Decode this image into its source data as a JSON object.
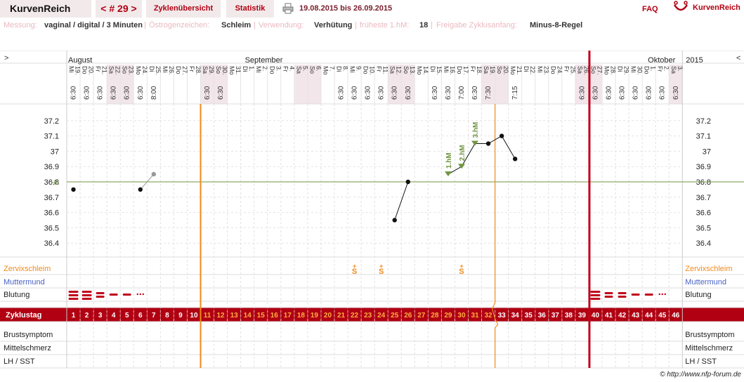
{
  "header": {
    "brand": "KurvenReich",
    "cycle_nav": "< # 29 >",
    "overview_tab": "Zyklenübersicht",
    "stats_tab": "Statistik",
    "date_range": "19.08.2015 bis 26.09.2015",
    "faq": "FAQ",
    "logo_text": "KurvenReich"
  },
  "info": {
    "measurement_label": "Messung:",
    "measurement_value": "vaginal / digital / 3 Minuten",
    "estrogen_label": "Östrogenzeichen:",
    "estrogen_value": "Schleim",
    "usage_label": "Verwendung:",
    "usage_value": "Verhütung",
    "earliest_label": "früheste 1.hM:",
    "earliest_value": "18",
    "release_label": "Freigabe Zyklusanfang:",
    "release_value": "Minus-8-Regel"
  },
  "grid": {
    "expand_left": ">",
    "expand_right": "<",
    "months": [
      "August",
      "September",
      "Oktober"
    ],
    "year": "2015",
    "hl_label": "HL",
    "row_labels": {
      "cervix": "Zervixschleim",
      "cervix_pos": "Muttermund",
      "bleeding": "Blutung",
      "cycle_day": "Zyklustag",
      "breast": "Brustsymptom",
      "midpain": "Mittelschmerz",
      "lh": "LH / SST"
    },
    "temp_ticks": [
      "37.2",
      "37.1",
      "37",
      "36.9",
      "36.8",
      "36.7",
      "36.6",
      "36.5",
      "36.4"
    ]
  },
  "colors": {
    "accent": "#b00012",
    "orange": "#f08a1c",
    "green_line": "#6f9640",
    "weekend": "#f2e6ea",
    "blue_label": "#4a63c6"
  },
  "chart_data": {
    "type": "line",
    "ylim": [
      36.3,
      37.3
    ],
    "ticks": [
      37.2,
      37.1,
      37.0,
      36.9,
      36.8,
      36.7,
      36.6,
      36.5,
      36.4
    ],
    "hl": 36.8,
    "days": [
      {
        "d": "19.",
        "w": "Mi",
        "t": "6:30",
        "we": false
      },
      {
        "d": "20.",
        "w": "Do",
        "t": "6:30",
        "we": false
      },
      {
        "d": "21.",
        "w": "Fr",
        "t": "6:30",
        "we": false
      },
      {
        "d": "22.",
        "w": "Sa",
        "t": "6:30",
        "we": true
      },
      {
        "d": "23.",
        "w": "So",
        "t": "6:30",
        "we": true
      },
      {
        "d": "24.",
        "w": "Mo",
        "t": "6:30",
        "we": false
      },
      {
        "d": "25.",
        "w": "Di",
        "t": "8:00",
        "we": false
      },
      {
        "d": "26.",
        "w": "Mi",
        "t": "",
        "we": false
      },
      {
        "d": "27.",
        "w": "Do",
        "t": "",
        "we": false
      },
      {
        "d": "28.",
        "w": "Fr",
        "t": "",
        "we": false
      },
      {
        "d": "29.",
        "w": "Sa",
        "t": "6:30",
        "we": true
      },
      {
        "d": "30.",
        "w": "So",
        "t": "6:30",
        "we": true
      },
      {
        "d": "31.",
        "w": "Mo",
        "t": "",
        "we": false
      },
      {
        "d": "1.",
        "w": "Di",
        "t": "",
        "we": false
      },
      {
        "d": "2.",
        "w": "Mi",
        "t": "",
        "we": false
      },
      {
        "d": "3.",
        "w": "Do",
        "t": "",
        "we": false
      },
      {
        "d": "4.",
        "w": "Fr",
        "t": "",
        "we": false
      },
      {
        "d": "5.",
        "w": "Sa",
        "t": "",
        "we": true
      },
      {
        "d": "6.",
        "w": "So",
        "t": "",
        "we": true
      },
      {
        "d": "7.",
        "w": "Mo",
        "t": "",
        "we": false
      },
      {
        "d": "8.",
        "w": "Di",
        "t": "6:30",
        "we": false
      },
      {
        "d": "9.",
        "w": "Mi",
        "t": "6:30",
        "we": false
      },
      {
        "d": "10.",
        "w": "Do",
        "t": "6:30",
        "we": false
      },
      {
        "d": "11.",
        "w": "Fr",
        "t": "6:30",
        "we": false
      },
      {
        "d": "12.",
        "w": "Sa",
        "t": "6:30",
        "we": true
      },
      {
        "d": "13.",
        "w": "So",
        "t": "6:30",
        "we": true
      },
      {
        "d": "14.",
        "w": "Mo",
        "t": "",
        "we": false
      },
      {
        "d": "15.",
        "w": "Di",
        "t": "6:30",
        "we": false
      },
      {
        "d": "16.",
        "w": "Mi",
        "t": "6:30",
        "we": false
      },
      {
        "d": "17.",
        "w": "Do",
        "t": "7:00",
        "we": false
      },
      {
        "d": "18.",
        "w": "Fr",
        "t": "6:30",
        "we": false
      },
      {
        "d": "19.",
        "w": "Sa",
        "t": "7:30",
        "we": true
      },
      {
        "d": "20.",
        "w": "So",
        "t": "",
        "we": true
      },
      {
        "d": "21.",
        "w": "Mo",
        "t": "7:15",
        "we": false
      },
      {
        "d": "22.",
        "w": "Di",
        "t": "",
        "we": false
      },
      {
        "d": "23.",
        "w": "Mi",
        "t": "",
        "we": false
      },
      {
        "d": "24.",
        "w": "Do",
        "t": "",
        "we": false
      },
      {
        "d": "25.",
        "w": "Fr",
        "t": "",
        "we": false
      },
      {
        "d": "26.",
        "w": "Sa",
        "t": "6:30",
        "we": true
      },
      {
        "d": "27.",
        "w": "So",
        "t": "6:30",
        "we": true
      },
      {
        "d": "28.",
        "w": "Mo",
        "t": "6:30",
        "we": false
      },
      {
        "d": "29.",
        "w": "Di",
        "t": "6:30",
        "we": false
      },
      {
        "d": "30.",
        "w": "Mi",
        "t": "6:30",
        "we": false
      },
      {
        "d": "1.",
        "w": "Do",
        "t": "6:30",
        "we": false
      },
      {
        "d": "2.",
        "w": "Fr",
        "t": "6:30",
        "we": false
      },
      {
        "d": "3.",
        "w": "Sa",
        "t": "6:30",
        "we": true
      }
    ],
    "temps": [
      {
        "day": 1,
        "v": 36.75,
        "c": false
      },
      {
        "day": 6,
        "v": 36.75,
        "c": false
      },
      {
        "day": 7,
        "v": 36.85,
        "c": false,
        "ex": true
      },
      {
        "day": 25,
        "v": 36.55,
        "c": false
      },
      {
        "day": 26,
        "v": 36.8,
        "c": true
      },
      {
        "day": 29,
        "v": 36.85,
        "c": true,
        "hm": "1.hM"
      },
      {
        "day": 30,
        "v": 36.9,
        "c": true,
        "hm": "2.hM"
      },
      {
        "day": 31,
        "v": 37.05,
        "c": true,
        "hm": "3.hM"
      },
      {
        "day": 32,
        "v": 37.05,
        "c": true
      },
      {
        "day": 33,
        "v": 37.1,
        "c": false
      },
      {
        "day": 34,
        "v": 36.95,
        "c": false
      }
    ],
    "cervix_marks": [
      {
        "day": 22,
        "sym": "S+"
      },
      {
        "day": 24,
        "sym": "S+"
      },
      {
        "day": 30,
        "sym": "S+"
      }
    ],
    "bleeding": [
      {
        "day": 1,
        "level": "heavy"
      },
      {
        "day": 2,
        "level": "heavy"
      },
      {
        "day": 3,
        "level": "medium"
      },
      {
        "day": 4,
        "level": "light"
      },
      {
        "day": 5,
        "level": "light"
      },
      {
        "day": 6,
        "level": "spotting"
      },
      {
        "day": 40,
        "level": "heavy"
      },
      {
        "day": 41,
        "level": "medium"
      },
      {
        "day": 42,
        "level": "medium"
      },
      {
        "day": 43,
        "level": "light"
      },
      {
        "day": 44,
        "level": "light"
      },
      {
        "day": 45,
        "level": "spotting"
      }
    ],
    "cycle_days": 46,
    "orange_days": [
      11,
      12,
      13,
      14,
      15,
      16,
      17,
      18,
      19,
      20,
      21,
      22,
      23,
      24,
      25,
      26,
      27,
      28,
      29,
      30,
      31,
      32
    ],
    "free_start_after": 10,
    "hl_end_after": 32,
    "cycle_end_after": 39
  }
}
